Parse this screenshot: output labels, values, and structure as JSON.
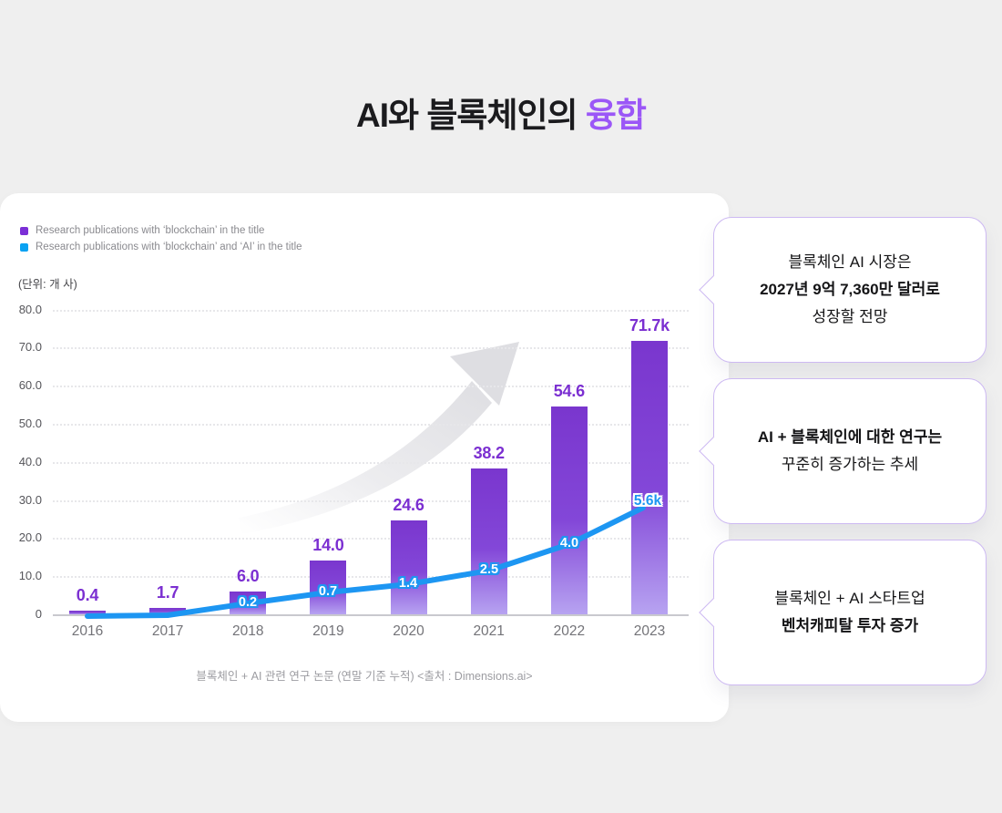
{
  "page": {
    "title": {
      "black": "AI와 블록체인의 ",
      "accent": "융합"
    },
    "background_color": "#EFEFEF",
    "accent_color": "#9B57F7"
  },
  "chart_data": {
    "type": "bar",
    "combo": "bar+line",
    "unit_label": "(단위: 개 사)",
    "values_note": "k = thousands; bar/line values are cumulative publication counts in thousands",
    "legend": [
      {
        "label": "Research publications with ‘blockchain’ in the title",
        "color": "#7B2FD6",
        "series": "bar"
      },
      {
        "label": "Research publications with ‘blockchain’ and ‘AI’ in the title",
        "color": "#0AA2F2",
        "series": "line"
      }
    ],
    "categories": [
      "2016",
      "2017",
      "2018",
      "2019",
      "2020",
      "2021",
      "2022",
      "2023"
    ],
    "series": [
      {
        "name": "Research publications with ‘blockchain’ in the title",
        "type": "bar",
        "color_top": "#7A36CE",
        "color_bottom": "#B7A3F1",
        "values": [
          0.4,
          1.7,
          6.0,
          14.0,
          24.6,
          38.2,
          54.6,
          71.7
        ],
        "labels": [
          "0.4",
          "1.7",
          "6.0",
          "14.0",
          "24.6",
          "38.2",
          "54.6",
          "71.7k"
        ]
      },
      {
        "name": "Research publications with ‘blockchain’ and ‘AI’ in the title",
        "type": "line",
        "color": "#1D96F2",
        "values": [
          0.0,
          0.1,
          0.2,
          0.7,
          1.4,
          2.5,
          4.0,
          5.6
        ],
        "labels": [
          null,
          null,
          "0.2",
          "0.7",
          "1.4",
          "2.5",
          "4.0",
          "5.6k"
        ]
      }
    ],
    "y_ticks": [
      {
        "value": 80,
        "label": "80.0"
      },
      {
        "value": 70,
        "label": "70.0"
      },
      {
        "value": 60,
        "label": "60.0"
      },
      {
        "value": 50,
        "label": "50.0"
      },
      {
        "value": 40,
        "label": "40.0"
      },
      {
        "value": 30,
        "label": "30.0"
      },
      {
        "value": 20,
        "label": "20.0"
      },
      {
        "value": 10,
        "label": "10.0"
      },
      {
        "value": 0,
        "label": "0"
      }
    ],
    "ylim": [
      0,
      80
    ],
    "grid": "dotted horizontal",
    "legend_position": "top-left",
    "caption": "블록체인 + AI 관련 연구 논문 (연말 기준 누적) <출처 : Dimensions.ai>"
  },
  "callouts": [
    {
      "lines": [
        {
          "text": "블록체인 AI 시장은",
          "bold": false
        },
        {
          "text": "2027년 9억 7,360만 달러로",
          "bold": true
        },
        {
          "text": "성장할 전망",
          "bold": false
        }
      ]
    },
    {
      "lines": [
        {
          "text": "AI + 블록체인에 대한 연구는",
          "bold": true
        },
        {
          "text": "꾸준히 증가하는 추세",
          "bold": false
        }
      ]
    },
    {
      "lines": [
        {
          "text": "블록체인 + AI 스타트업",
          "bold": false
        },
        {
          "text": "벤처캐피탈 투자 증가",
          "bold": true
        }
      ]
    }
  ]
}
